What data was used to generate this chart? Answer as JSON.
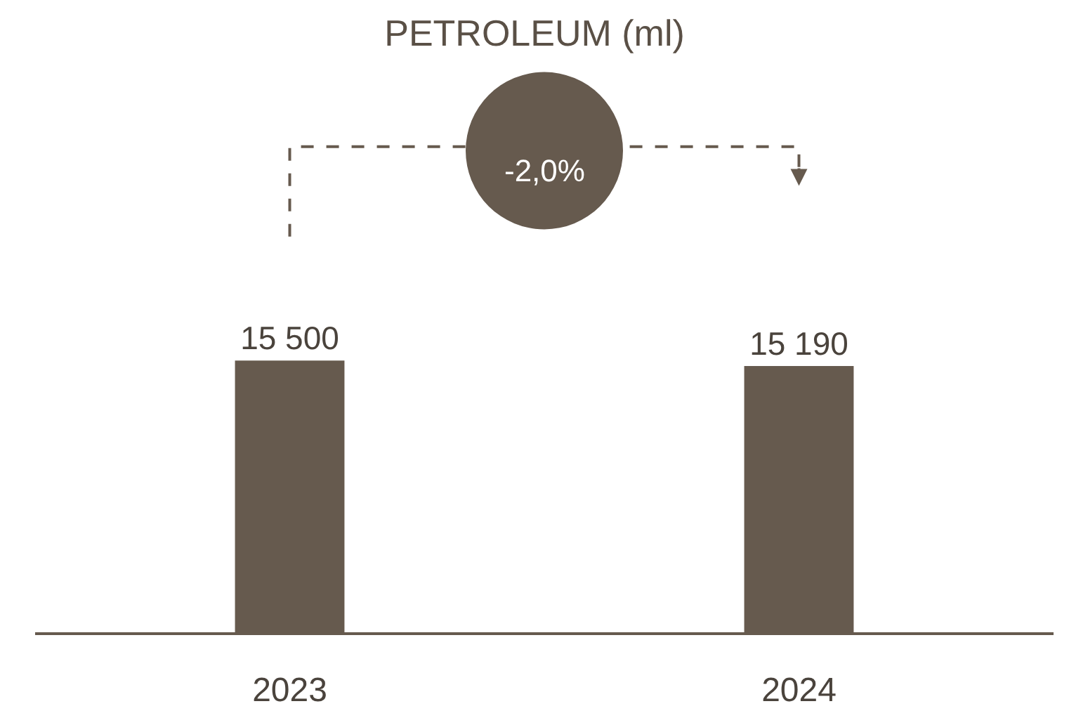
{
  "chart_data": {
    "type": "bar",
    "title": "PETROLEUM (ml)",
    "categories": [
      "2023",
      "2024"
    ],
    "values": [
      15500,
      15190
    ],
    "value_labels": [
      "15 500",
      "15 190"
    ],
    "color": "#665a4e",
    "annotations": [
      "-2,0%"
    ],
    "legend": false
  }
}
